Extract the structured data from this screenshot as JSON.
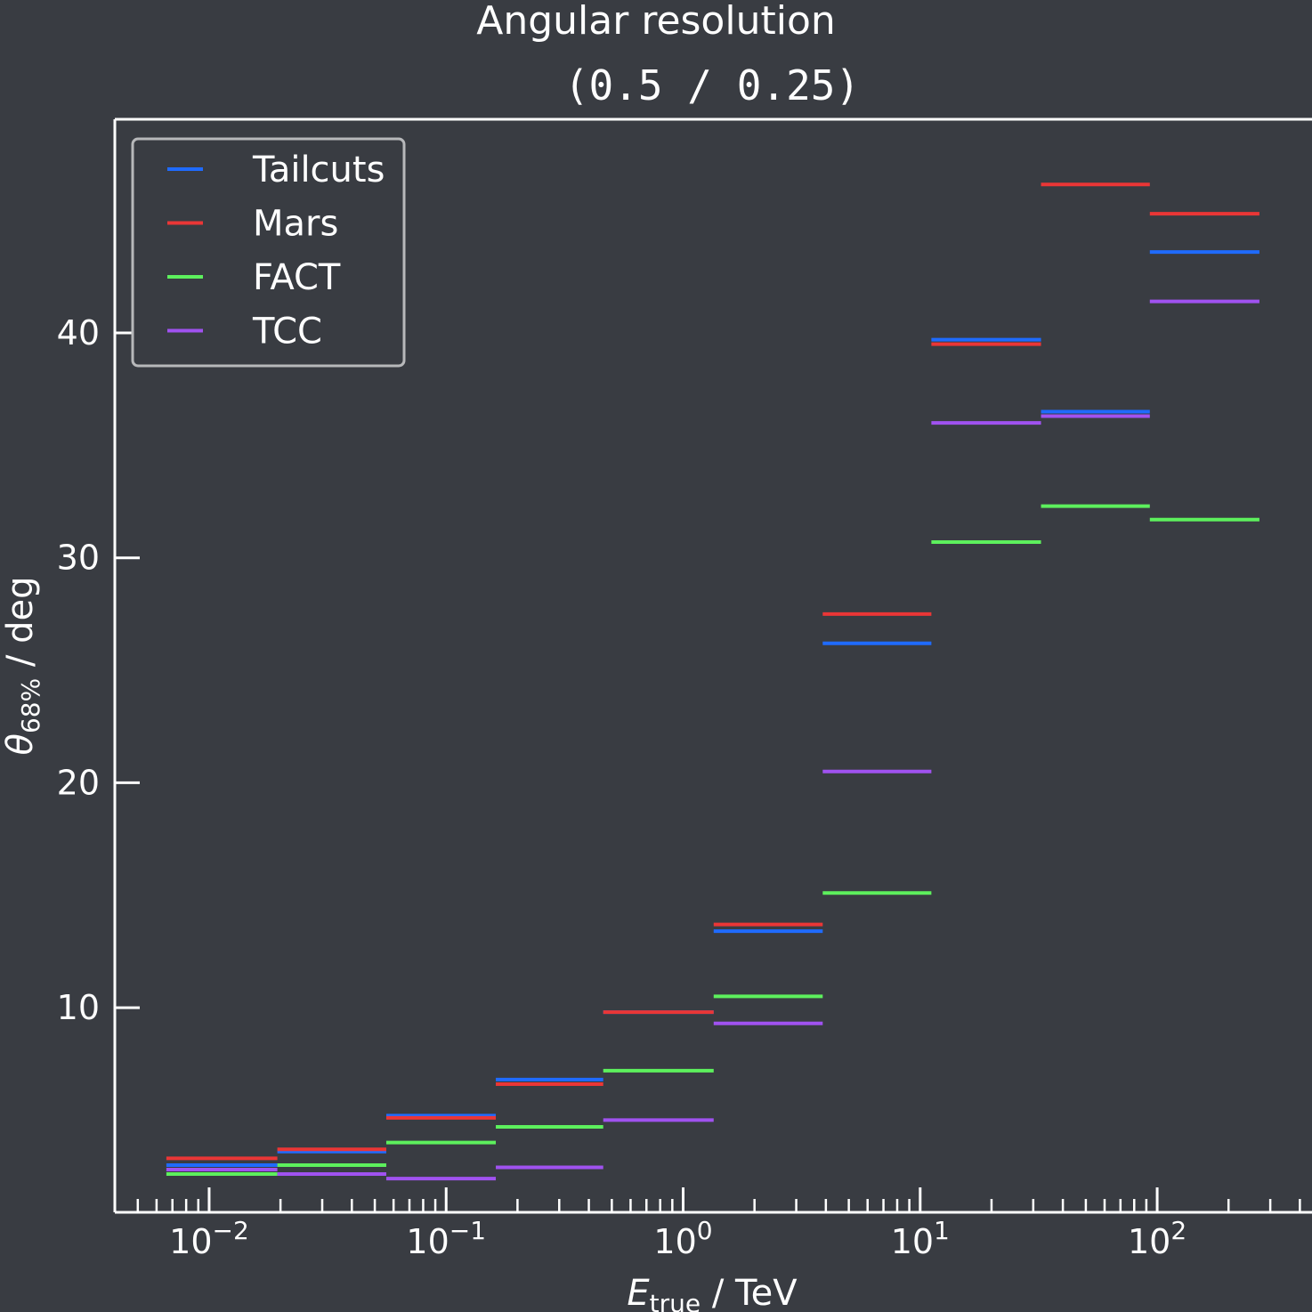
{
  "chart_data": {
    "type": "line",
    "title": "Angular resolution",
    "subtitle": "(0.5 / 0.25)",
    "xlabel": {
      "main": "E",
      "sub": "true",
      "rest": " / TeV"
    },
    "ylabel": {
      "main": "θ",
      "sub": "68%",
      "rest": " / deg"
    },
    "xscale": "log",
    "xlim": [
      0.004,
      450
    ],
    "ylim": [
      0.9,
      49.5
    ],
    "grid": false,
    "legend": "top-left",
    "x_ticks": [
      {
        "value": 0.01,
        "base": "10",
        "exp": "−2"
      },
      {
        "value": 0.1,
        "base": "10",
        "exp": "−1"
      },
      {
        "value": 1,
        "base": "10",
        "exp": "0"
      },
      {
        "value": 10,
        "base": "10",
        "exp": "1"
      },
      {
        "value": 100,
        "base": "10",
        "exp": "2"
      }
    ],
    "y_ticks": [
      10,
      20,
      30,
      40
    ],
    "bin_edges": [
      0.0066,
      0.0194,
      0.0559,
      0.162,
      0.46,
      1.345,
      3.88,
      11.15,
      32.35,
      93.1,
      270
    ],
    "series": [
      {
        "name": "Tailcuts",
        "color": "#1f6bff",
        "values": [
          3.0,
          3.6,
          5.2,
          6.8,
          9.8,
          13.4,
          26.2,
          39.7,
          36.5,
          43.6
        ]
      },
      {
        "name": "Mars",
        "color": "#ea3636",
        "values": [
          3.3,
          3.7,
          5.1,
          6.6,
          9.8,
          13.7,
          27.5,
          39.5,
          46.6,
          45.3
        ]
      },
      {
        "name": "FACT",
        "color": "#5df05d",
        "values": [
          2.6,
          3.0,
          4.0,
          4.7,
          7.2,
          10.5,
          15.1,
          30.7,
          32.3,
          31.7
        ]
      },
      {
        "name": "TCC",
        "color": "#a052f0",
        "values": [
          2.8,
          2.6,
          2.4,
          2.9,
          5.0,
          9.3,
          20.5,
          36.0,
          36.3,
          41.4
        ]
      }
    ]
  }
}
